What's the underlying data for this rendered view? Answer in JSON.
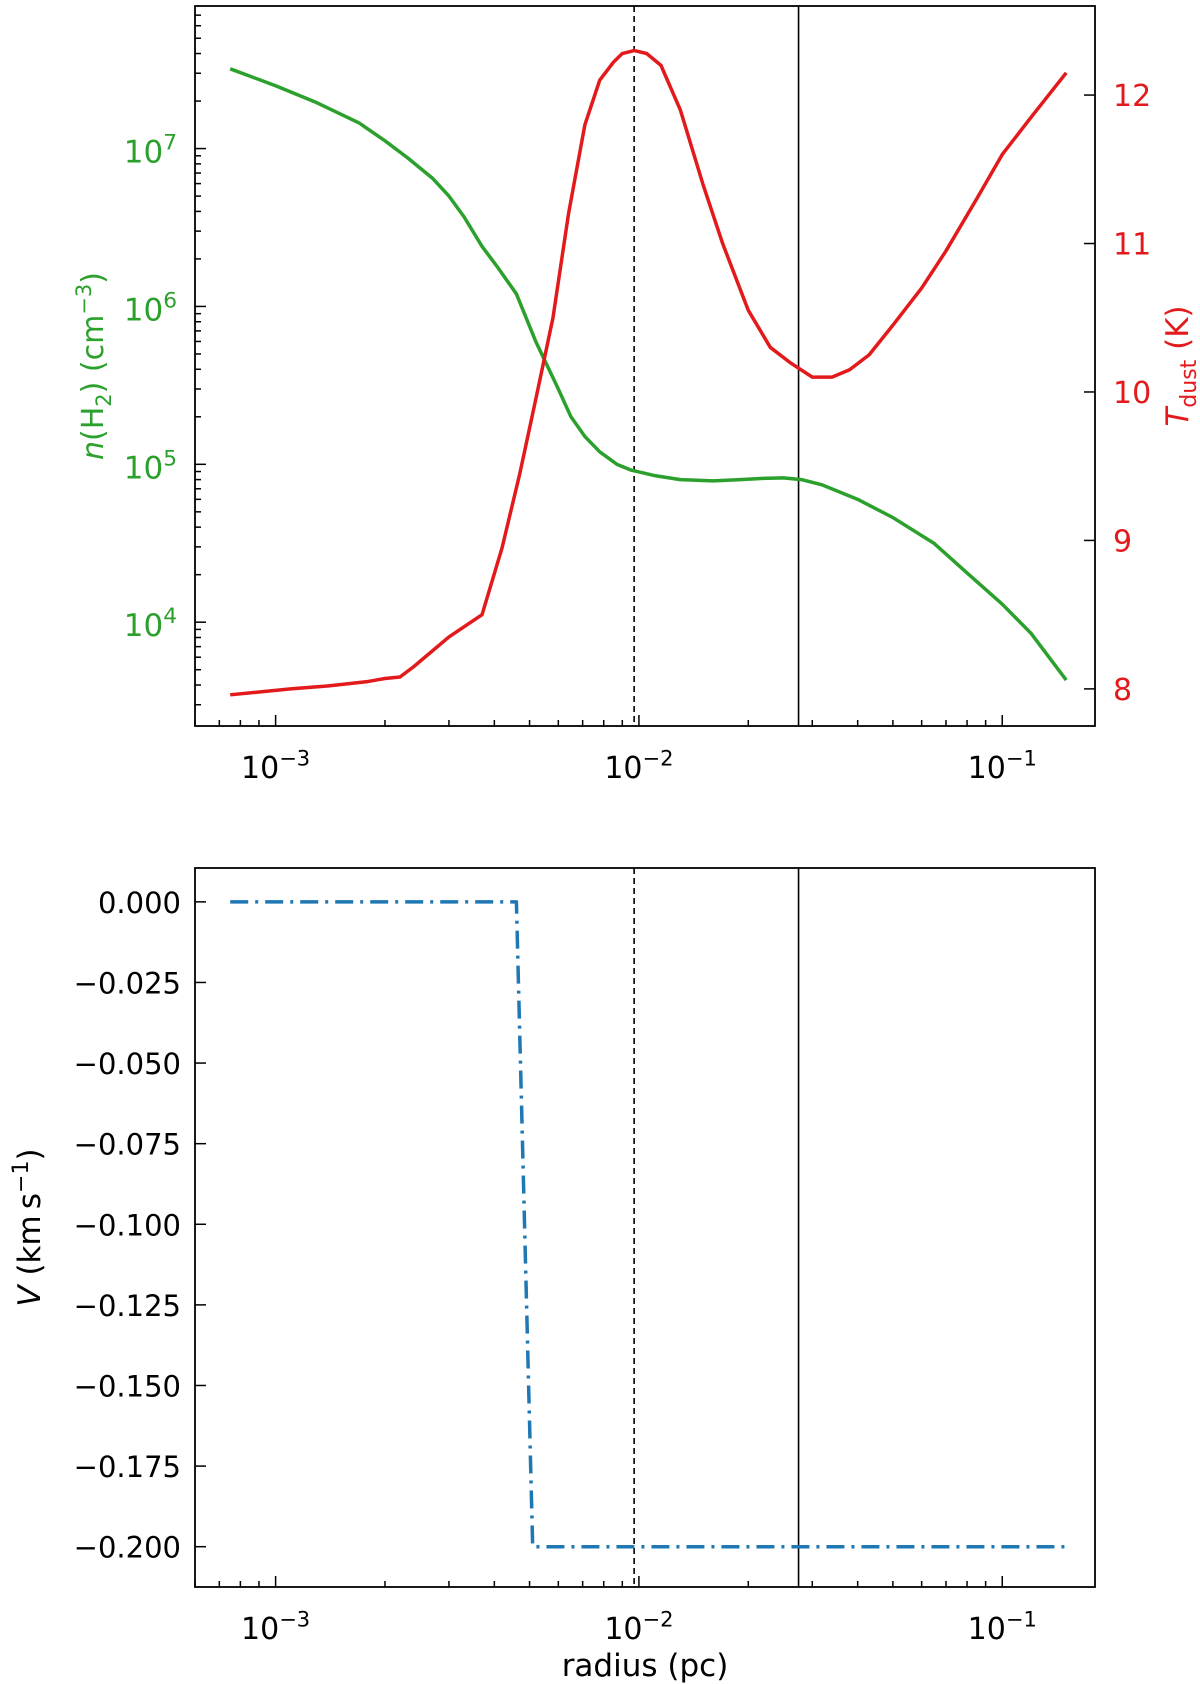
{
  "chart_data": [
    {
      "type": "line",
      "xscale": "log",
      "xlim": [
        0.0006,
        0.18
      ],
      "x_ticks": [
        0.001,
        0.01,
        0.1
      ],
      "x_tick_base": "10",
      "x_tick_exponents": [
        "−3",
        "−2",
        "−1"
      ],
      "left_axis": {
        "label_italic": "n",
        "label_rest": "(H",
        "label_sub": "2",
        "label_after": ") (cm",
        "label_sup": "−3",
        "label_close": ")",
        "scale": "log",
        "ylim": [
          2200,
          80000000
        ],
        "ticks": [
          10000,
          100000,
          1000000,
          10000000
        ],
        "tick_base": "10",
        "tick_exponents": [
          "4",
          "5",
          "6",
          "7"
        ],
        "color": "#2ca02c"
      },
      "right_axis": {
        "label_italic": "T",
        "label_sub": "dust",
        "label_after": " (K)",
        "scale": "linear",
        "ylim": [
          7.75,
          12.6
        ],
        "ticks": [
          8,
          9,
          10,
          11,
          12
        ],
        "tick_labels": [
          "8",
          "9",
          "10",
          "11",
          "12"
        ],
        "color": "#e31a1c"
      },
      "series": [
        {
          "axis": "left",
          "color": "#2ca02c",
          "x": [
            0.00075,
            0.001,
            0.0013,
            0.0017,
            0.002,
            0.0023,
            0.0027,
            0.003,
            0.0033,
            0.0037,
            0.0041,
            0.0046,
            0.0052,
            0.006,
            0.0065,
            0.0071,
            0.0078,
            0.0087,
            0.0095,
            0.011,
            0.013,
            0.016,
            0.019,
            0.022,
            0.025,
            0.028,
            0.032,
            0.04,
            0.05,
            0.065,
            0.08,
            0.1,
            0.12,
            0.15
          ],
          "y": [
            32000000,
            25000000,
            19500000,
            14500000,
            11200000,
            8800000,
            6500000,
            5000000,
            3700000,
            2400000,
            1750000,
            1200000,
            600000,
            300000,
            200000,
            150000,
            120000,
            100000,
            92000,
            85000,
            80000,
            78500,
            80000,
            81500,
            82000,
            80000,
            74000,
            60000,
            46000,
            31500,
            20500,
            13000,
            8500,
            4300
          ]
        },
        {
          "axis": "right",
          "color": "#e31a1c",
          "x": [
            0.00075,
            0.001,
            0.0011,
            0.0014,
            0.0018,
            0.002,
            0.0022,
            0.0024,
            0.003,
            0.0037,
            0.0042,
            0.0047,
            0.0052,
            0.0058,
            0.0064,
            0.0071,
            0.0078,
            0.0085,
            0.009,
            0.0097,
            0.0105,
            0.0115,
            0.013,
            0.015,
            0.017,
            0.02,
            0.023,
            0.026,
            0.03,
            0.034,
            0.038,
            0.043,
            0.05,
            0.06,
            0.07,
            0.085,
            0.1,
            0.12,
            0.15
          ],
          "y": [
            7.96,
            7.99,
            8.0,
            8.02,
            8.05,
            8.07,
            8.08,
            8.15,
            8.35,
            8.5,
            8.95,
            9.45,
            9.95,
            10.5,
            11.2,
            11.8,
            12.1,
            12.22,
            12.28,
            12.3,
            12.28,
            12.2,
            11.9,
            11.4,
            11.0,
            10.55,
            10.3,
            10.2,
            10.1,
            10.1,
            10.15,
            10.25,
            10.45,
            10.7,
            10.95,
            11.3,
            11.6,
            11.85,
            12.15
          ]
        }
      ],
      "vlines": [
        {
          "x": 0.0097,
          "style": "dashed"
        },
        {
          "x": 0.0275,
          "style": "solid"
        }
      ]
    },
    {
      "type": "line",
      "xscale": "log",
      "xlim": [
        0.0006,
        0.18
      ],
      "x_ticks": [
        0.001,
        0.01,
        0.1
      ],
      "x_tick_base": "10",
      "x_tick_exponents": [
        "−3",
        "−2",
        "−1"
      ],
      "xlabel": "radius (pc)",
      "ylabel_italic": "V",
      "ylabel_rest": " (km s",
      "ylabel_sup": "−1",
      "ylabel_close": ")",
      "ylim": [
        -0.2125,
        0.0105
      ],
      "y_ticks": [
        0.0,
        -0.025,
        -0.05,
        -0.075,
        -0.1,
        -0.125,
        -0.15,
        -0.175,
        -0.2
      ],
      "y_tick_labels": [
        "0.000",
        "−0.025",
        "−0.050",
        "−0.075",
        "−0.100",
        "−0.125",
        "−0.150",
        "−0.175",
        "−0.200"
      ],
      "series": [
        {
          "color": "#1f77b4",
          "style": "dashdot",
          "x": [
            0.00075,
            0.0046,
            0.0051,
            0.15
          ],
          "y": [
            0.0,
            0.0,
            -0.2,
            -0.2
          ]
        }
      ],
      "vlines": [
        {
          "x": 0.0097,
          "style": "dashed"
        },
        {
          "x": 0.0275,
          "style": "solid"
        }
      ]
    }
  ]
}
